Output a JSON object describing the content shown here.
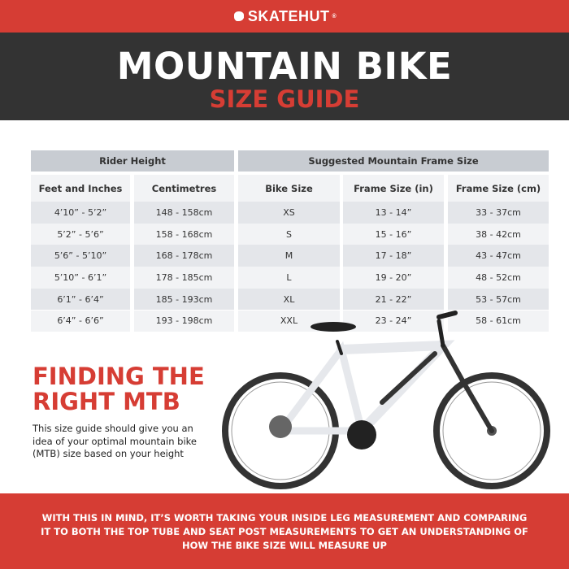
{
  "brand": {
    "name": "SKATEHUT",
    "registered": "®",
    "logo_icon": "hand-icon",
    "color": "#d63d34"
  },
  "header": {
    "title": "MOUNTAIN BIKE",
    "subtitle": "SIZE GUIDE"
  },
  "table": {
    "group_headers": [
      "Rider Height",
      "Suggested Mountain Frame Size"
    ],
    "columns": [
      "Feet and Inches",
      "Centimetres",
      "Bike Size",
      "Frame Size (in)",
      "Frame Size (cm)"
    ],
    "rows": [
      [
        "4’10” - 5’2”",
        "148 - 158cm",
        "XS",
        "13 - 14”",
        "33 - 37cm"
      ],
      [
        "5’2” - 5’6”",
        "158 - 168cm",
        "S",
        "15 - 16”",
        "38 - 42cm"
      ],
      [
        "5’6” - 5’10”",
        "168 - 178cm",
        "M",
        "17 - 18”",
        "43 - 47cm"
      ],
      [
        "5’10” - 6’1”",
        "178 - 185cm",
        "L",
        "19 - 20”",
        "48 - 52cm"
      ],
      [
        "6’1” - 6’4”",
        "185 - 193cm",
        "XL",
        "21 - 22”",
        "53 - 57cm"
      ],
      [
        "6’4” - 6’6”",
        "193 - 198cm",
        "XXL",
        "23 - 24”",
        "58 - 61cm"
      ]
    ]
  },
  "finding": {
    "title_line1": "FINDING THE",
    "title_line2": "RIGHT MTB",
    "body": "This size guide should give you an idea of your optimal mountain bike (MTB) size based on your height"
  },
  "footer": {
    "text": "WITH THIS IN MIND, IT’S WORTH TAKING YOUR INSIDE LEG MEASUREMENT AND COMPARING IT TO BOTH THE TOP TUBE AND SEAT POST MEASUREMENTS TO GET AN UNDERSTANDING OF HOW THE BIKE SIZE WILL MEASURE UP"
  }
}
